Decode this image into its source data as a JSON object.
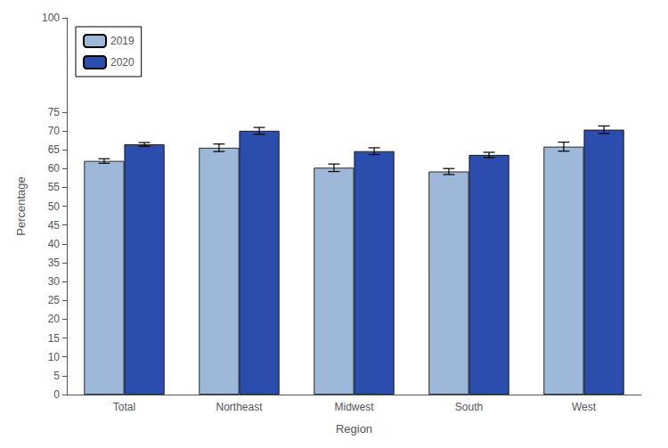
{
  "chart_data": {
    "type": "bar",
    "xlabel": "Region",
    "ylabel": "Percentage",
    "categories": [
      "Total",
      "Northeast",
      "Midwest",
      "South",
      "West"
    ],
    "series": [
      {
        "name": "2019",
        "color": "#9DB8D9",
        "values": [
          62.0,
          65.5,
          60.2,
          59.2,
          65.8
        ],
        "errors": [
          0.6,
          1.0,
          1.0,
          0.8,
          1.2
        ]
      },
      {
        "name": "2020",
        "color": "#2B4EAE",
        "values": [
          66.4,
          70.0,
          64.6,
          63.6,
          70.3
        ],
        "errors": [
          0.5,
          0.9,
          0.9,
          0.7,
          1.0
        ]
      }
    ],
    "ylim": [
      0,
      100
    ],
    "yticks": [
      0,
      5,
      10,
      15,
      20,
      25,
      30,
      35,
      40,
      45,
      50,
      55,
      60,
      65,
      70,
      75,
      100
    ],
    "grid": false,
    "legend": "upper left"
  }
}
